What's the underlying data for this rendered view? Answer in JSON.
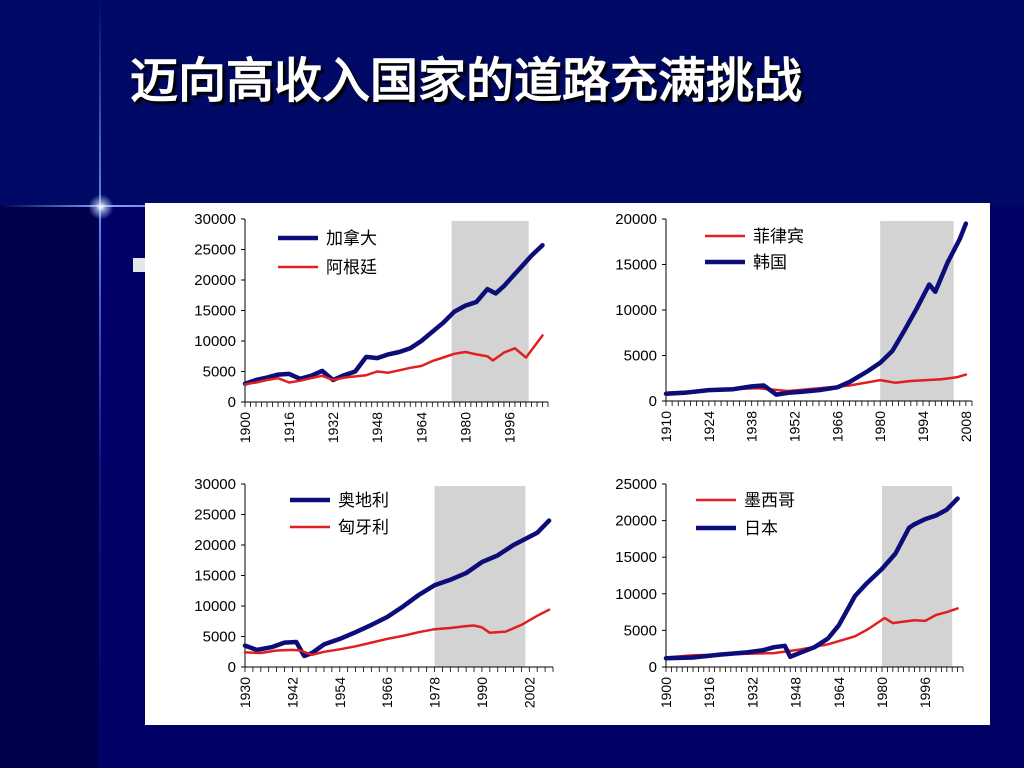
{
  "slide": {
    "title": "迈向高收入国家的道路充满挑战"
  },
  "colors": {
    "background": "#000066",
    "series_blue": "#0d0d7a",
    "series_red": "#e02020",
    "shade": "#d3d3d3"
  },
  "chart_data": [
    {
      "type": "line",
      "ylim": [
        0,
        30000
      ],
      "yticks": [
        0,
        5000,
        10000,
        15000,
        20000,
        25000,
        30000
      ],
      "xlim": [
        1900,
        2010
      ],
      "xticks": [
        1900,
        1916,
        1932,
        1948,
        1964,
        1980,
        1996
      ],
      "shaded_x": [
        1975,
        2003
      ],
      "series": [
        {
          "name": "加拿大",
          "color": "#0d0d7a",
          "x": [
            1900,
            1904,
            1908,
            1912,
            1916,
            1920,
            1924,
            1928,
            1932,
            1936,
            1940,
            1944,
            1948,
            1952,
            1956,
            1960,
            1964,
            1968,
            1972,
            1976,
            1980,
            1982,
            1984,
            1988,
            1991,
            1994,
            1998,
            2000,
            2004,
            2008
          ],
          "y": [
            3000,
            3600,
            4000,
            4500,
            4600,
            3800,
            4300,
            5100,
            3600,
            4400,
            5000,
            7400,
            7200,
            7800,
            8200,
            8800,
            10000,
            11500,
            13000,
            14800,
            15800,
            16100,
            16400,
            18500,
            17800,
            19000,
            21000,
            22000,
            24000,
            25700
          ]
        },
        {
          "name": "阿根廷",
          "color": "#e02020",
          "x": [
            1900,
            1904,
            1908,
            1912,
            1916,
            1920,
            1924,
            1928,
            1932,
            1936,
            1940,
            1944,
            1948,
            1952,
            1956,
            1960,
            1964,
            1968,
            1972,
            1976,
            1980,
            1984,
            1988,
            1990,
            1994,
            1998,
            2002,
            2008
          ],
          "y": [
            2900,
            3200,
            3600,
            3900,
            3200,
            3500,
            3900,
            4300,
            3600,
            4000,
            4200,
            4400,
            5000,
            4800,
            5200,
            5600,
            5900,
            6700,
            7300,
            7900,
            8200,
            7800,
            7500,
            6800,
            8100,
            8800,
            7300,
            10900
          ]
        }
      ]
    },
    {
      "type": "line",
      "ylim": [
        0,
        20000
      ],
      "yticks": [
        0,
        5000,
        10000,
        15000,
        20000
      ],
      "xlim": [
        1910,
        2010
      ],
      "xticks": [
        1910,
        1924,
        1938,
        1952,
        1966,
        1980,
        1994,
        2008
      ],
      "shaded_x": [
        1980,
        2004
      ],
      "series": [
        {
          "name": "菲律宾",
          "color": "#e02020",
          "x": [
            1910,
            1920,
            1930,
            1940,
            1950,
            1960,
            1970,
            1980,
            1985,
            1990,
            1995,
            2000,
            2005,
            2008
          ],
          "y": [
            900,
            1100,
            1300,
            1400,
            1100,
            1400,
            1700,
            2300,
            2000,
            2200,
            2300,
            2400,
            2600,
            2900
          ]
        },
        {
          "name": "韩国",
          "color": "#0d0d7a",
          "x": [
            1910,
            1916,
            1924,
            1932,
            1938,
            1942,
            1946,
            1950,
            1954,
            1960,
            1966,
            1970,
            1976,
            1980,
            1984,
            1988,
            1992,
            1996,
            1998,
            2002,
            2006,
            2008
          ],
          "y": [
            800,
            900,
            1200,
            1300,
            1600,
            1700,
            700,
            900,
            1000,
            1200,
            1500,
            2100,
            3300,
            4200,
            5500,
            7800,
            10200,
            12800,
            12000,
            15200,
            17800,
            19500
          ]
        }
      ]
    },
    {
      "type": "line",
      "ylim": [
        0,
        30000
      ],
      "yticks": [
        0,
        5000,
        10000,
        15000,
        20000,
        25000,
        30000
      ],
      "xlim": [
        1930,
        2008
      ],
      "xticks": [
        1930,
        1942,
        1954,
        1966,
        1978,
        1990,
        2002
      ],
      "shaded_x": [
        1978,
        2001
      ],
      "series": [
        {
          "name": "奥地利",
          "color": "#0d0d7a",
          "x": [
            1930,
            1933,
            1937,
            1940,
            1943,
            1945,
            1947,
            1950,
            1954,
            1958,
            1962,
            1966,
            1970,
            1974,
            1978,
            1982,
            1986,
            1990,
            1994,
            1998,
            2001,
            2004,
            2007
          ],
          "y": [
            3500,
            2800,
            3300,
            4000,
            4100,
            1800,
            2300,
            3700,
            4600,
            5700,
            6900,
            8200,
            9900,
            11800,
            13400,
            14300,
            15400,
            17200,
            18300,
            20000,
            21000,
            22000,
            24000
          ]
        },
        {
          "name": "匈牙利",
          "color": "#e02020",
          "x": [
            1930,
            1934,
            1938,
            1942,
            1944,
            1947,
            1950,
            1954,
            1958,
            1962,
            1966,
            1970,
            1974,
            1978,
            1982,
            1986,
            1988,
            1990,
            1992,
            1996,
            2000,
            2004,
            2007
          ],
          "y": [
            2400,
            2300,
            2700,
            2800,
            2700,
            2000,
            2500,
            2900,
            3400,
            4000,
            4600,
            5100,
            5700,
            6200,
            6400,
            6700,
            6800,
            6500,
            5600,
            5800,
            6900,
            8400,
            9400
          ]
        }
      ]
    },
    {
      "type": "line",
      "ylim": [
        0,
        25000
      ],
      "yticks": [
        0,
        5000,
        10000,
        15000,
        20000,
        25000
      ],
      "xlim": [
        1900,
        2010
      ],
      "xticks": [
        1900,
        1916,
        1932,
        1948,
        1964,
        1980,
        1996
      ],
      "shaded_x": [
        1980,
        2006
      ],
      "series": [
        {
          "name": "墨西哥",
          "color": "#e02020",
          "x": [
            1900,
            1910,
            1920,
            1930,
            1940,
            1950,
            1960,
            1970,
            1975,
            1981,
            1984,
            1988,
            1992,
            1996,
            2000,
            2004,
            2008
          ],
          "y": [
            1300,
            1600,
            1700,
            1800,
            1900,
            2400,
            3100,
            4200,
            5200,
            6700,
            6000,
            6200,
            6400,
            6300,
            7100,
            7500,
            8000
          ]
        },
        {
          "name": "日本",
          "color": "#0d0d7a",
          "x": [
            1900,
            1910,
            1920,
            1930,
            1936,
            1940,
            1944,
            1946,
            1950,
            1955,
            1960,
            1964,
            1970,
            1974,
            1980,
            1985,
            1990,
            1992,
            1996,
            2000,
            2004,
            2008
          ],
          "y": [
            1200,
            1300,
            1700,
            2000,
            2300,
            2700,
            2900,
            1400,
            2000,
            2700,
            3900,
            5700,
            9700,
            11300,
            13400,
            15500,
            19000,
            19500,
            20200,
            20700,
            21500,
            23000
          ]
        }
      ]
    }
  ]
}
